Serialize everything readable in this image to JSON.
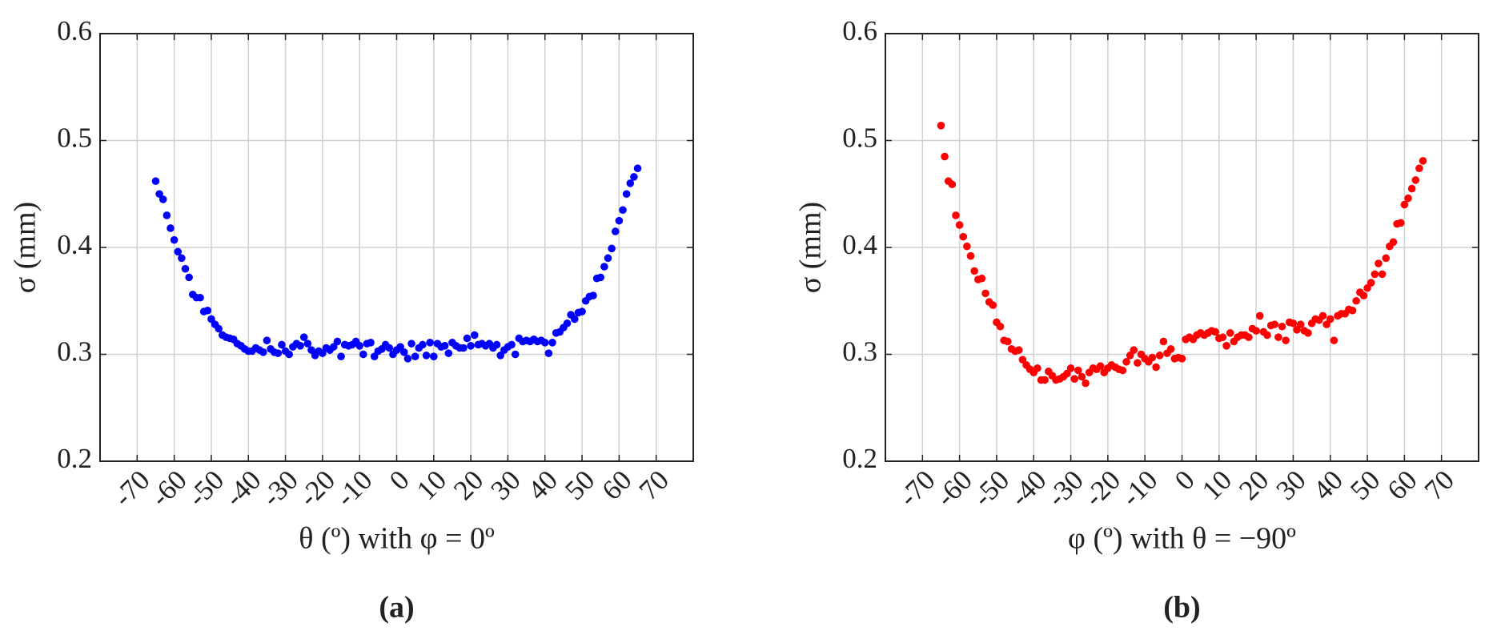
{
  "chart_data": [
    {
      "type": "scatter",
      "x_label": "θ (º) with φ = 0º",
      "y_label": "σ (mm)",
      "panel_label": "(a)",
      "color": "#0000ff",
      "grid": true,
      "xlim": [
        -80,
        80
      ],
      "ylim": [
        0.2,
        0.6
      ],
      "xticks": [
        -70,
        -60,
        -50,
        -40,
        -30,
        -20,
        -10,
        0,
        10,
        20,
        30,
        40,
        50,
        60,
        70
      ],
      "yticks": [
        0.2,
        0.3,
        0.4,
        0.5,
        0.6
      ],
      "x": [
        -65,
        -64,
        -63,
        -62,
        -61,
        -60,
        -59,
        -58,
        -57,
        -56,
        -55,
        -54,
        -53,
        -52,
        -51,
        -50,
        -49,
        -48,
        -47,
        -46,
        -45,
        -44,
        -43,
        -42,
        -41,
        -40,
        -39,
        -38,
        -37,
        -36,
        -35,
        -34,
        -33,
        -32,
        -31,
        -30,
        -29,
        -28,
        -27,
        -26,
        -25,
        -24,
        -23,
        -22,
        -21,
        -20,
        -19,
        -18,
        -17,
        -16,
        -15,
        -14,
        -13,
        -12,
        -11,
        -10,
        -9,
        -8,
        -7,
        -6,
        -5,
        -4,
        -3,
        -2,
        -1,
        0,
        1,
        2,
        3,
        4,
        5,
        6,
        7,
        8,
        9,
        10,
        11,
        12,
        13,
        14,
        15,
        16,
        17,
        18,
        19,
        20,
        21,
        22,
        23,
        24,
        25,
        26,
        27,
        28,
        29,
        30,
        31,
        32,
        33,
        34,
        35,
        36,
        37,
        38,
        39,
        40,
        41,
        42,
        43,
        44,
        45,
        46,
        47,
        48,
        49,
        50,
        51,
        52,
        53,
        54,
        55,
        56,
        57,
        58,
        59,
        60,
        61,
        62,
        63,
        64,
        65
      ],
      "y": [
        0.462,
        0.45,
        0.445,
        0.43,
        0.418,
        0.407,
        0.396,
        0.39,
        0.38,
        0.372,
        0.356,
        0.353,
        0.353,
        0.34,
        0.341,
        0.333,
        0.328,
        0.324,
        0.318,
        0.316,
        0.315,
        0.314,
        0.31,
        0.308,
        0.305,
        0.303,
        0.303,
        0.306,
        0.304,
        0.302,
        0.313,
        0.305,
        0.302,
        0.301,
        0.309,
        0.303,
        0.3,
        0.307,
        0.31,
        0.308,
        0.316,
        0.31,
        0.304,
        0.299,
        0.303,
        0.301,
        0.306,
        0.304,
        0.307,
        0.312,
        0.298,
        0.309,
        0.308,
        0.309,
        0.312,
        0.308,
        0.3,
        0.31,
        0.311,
        0.298,
        0.303,
        0.305,
        0.309,
        0.306,
        0.3,
        0.304,
        0.307,
        0.302,
        0.296,
        0.31,
        0.298,
        0.306,
        0.309,
        0.299,
        0.311,
        0.298,
        0.31,
        0.307,
        0.308,
        0.301,
        0.311,
        0.308,
        0.306,
        0.306,
        0.315,
        0.308,
        0.318,
        0.309,
        0.31,
        0.308,
        0.31,
        0.306,
        0.309,
        0.299,
        0.304,
        0.307,
        0.309,
        0.3,
        0.315,
        0.312,
        0.313,
        0.312,
        0.314,
        0.312,
        0.313,
        0.311,
        0.301,
        0.311,
        0.32,
        0.321,
        0.325,
        0.329,
        0.337,
        0.333,
        0.339,
        0.34,
        0.35,
        0.354,
        0.355,
        0.371,
        0.372,
        0.382,
        0.39,
        0.399,
        0.415,
        0.425,
        0.435,
        0.45,
        0.46,
        0.466,
        0.474
      ]
    },
    {
      "type": "scatter",
      "x_label": "φ (º) with θ = −90º",
      "y_label": "σ (mm)",
      "panel_label": "(b)",
      "color": "#ff0000",
      "grid": true,
      "xlim": [
        -80,
        80
      ],
      "ylim": [
        0.2,
        0.6
      ],
      "xticks": [
        -70,
        -60,
        -50,
        -40,
        -30,
        -20,
        -10,
        0,
        10,
        20,
        30,
        40,
        50,
        60,
        70
      ],
      "yticks": [
        0.2,
        0.3,
        0.4,
        0.5,
        0.6
      ],
      "x": [
        -65,
        -64,
        -63,
        -62,
        -61,
        -60,
        -59,
        -58,
        -57,
        -56,
        -55,
        -54,
        -53,
        -52,
        -51,
        -50,
        -49,
        -48,
        -47,
        -46,
        -45,
        -44,
        -43,
        -42,
        -41,
        -40,
        -39,
        -38,
        -37,
        -36,
        -35,
        -34,
        -33,
        -32,
        -31,
        -30,
        -29,
        -28,
        -27,
        -26,
        -25,
        -24,
        -23,
        -22,
        -21,
        -20,
        -19,
        -18,
        -17,
        -16,
        -15,
        -14,
        -13,
        -12,
        -11,
        -10,
        -9,
        -8,
        -7,
        -6,
        -5,
        -4,
        -3,
        -2,
        -1,
        0,
        1,
        2,
        3,
        4,
        5,
        6,
        7,
        8,
        9,
        10,
        11,
        12,
        13,
        14,
        15,
        16,
        17,
        18,
        19,
        20,
        21,
        22,
        23,
        24,
        25,
        26,
        27,
        28,
        29,
        30,
        31,
        32,
        33,
        34,
        35,
        36,
        37,
        38,
        39,
        40,
        41,
        42,
        43,
        44,
        45,
        46,
        47,
        48,
        49,
        50,
        51,
        52,
        53,
        54,
        55,
        56,
        57,
        58,
        59,
        60,
        61,
        62,
        63,
        64,
        65
      ],
      "y": [
        0.514,
        0.485,
        0.462,
        0.459,
        0.43,
        0.421,
        0.41,
        0.401,
        0.392,
        0.378,
        0.37,
        0.371,
        0.357,
        0.349,
        0.346,
        0.33,
        0.326,
        0.313,
        0.312,
        0.305,
        0.303,
        0.304,
        0.295,
        0.29,
        0.286,
        0.283,
        0.287,
        0.276,
        0.276,
        0.284,
        0.28,
        0.276,
        0.277,
        0.279,
        0.282,
        0.287,
        0.277,
        0.285,
        0.279,
        0.273,
        0.283,
        0.287,
        0.286,
        0.289,
        0.283,
        0.287,
        0.29,
        0.288,
        0.286,
        0.285,
        0.293,
        0.299,
        0.304,
        0.292,
        0.3,
        0.296,
        0.293,
        0.297,
        0.288,
        0.299,
        0.312,
        0.301,
        0.305,
        0.296,
        0.297,
        0.296,
        0.314,
        0.316,
        0.314,
        0.318,
        0.32,
        0.318,
        0.32,
        0.322,
        0.321,
        0.315,
        0.316,
        0.308,
        0.32,
        0.312,
        0.316,
        0.318,
        0.318,
        0.316,
        0.324,
        0.322,
        0.336,
        0.321,
        0.318,
        0.327,
        0.328,
        0.316,
        0.326,
        0.313,
        0.33,
        0.329,
        0.323,
        0.328,
        0.322,
        0.32,
        0.329,
        0.333,
        0.332,
        0.336,
        0.328,
        0.333,
        0.313,
        0.336,
        0.338,
        0.338,
        0.342,
        0.341,
        0.35,
        0.358,
        0.355,
        0.362,
        0.367,
        0.375,
        0.385,
        0.375,
        0.39,
        0.401,
        0.405,
        0.422,
        0.423,
        0.44,
        0.446,
        0.455,
        0.463,
        0.474,
        0.481
      ]
    }
  ]
}
